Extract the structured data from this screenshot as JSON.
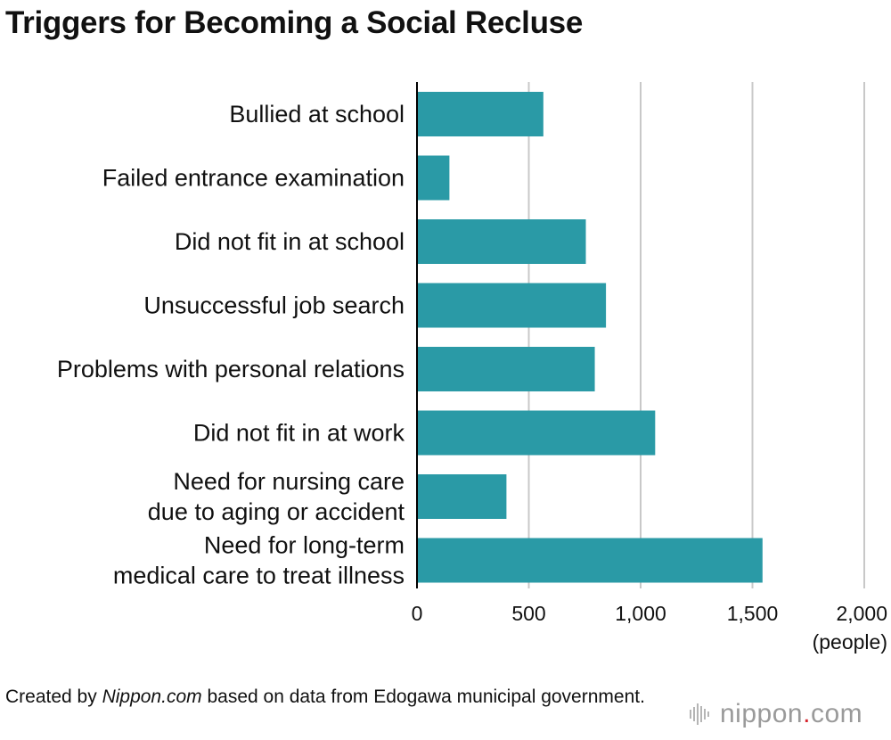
{
  "title": "Triggers for Becoming a Social Recluse",
  "credit": {
    "prefix": "Created by ",
    "source_name": "Nippon.com",
    "suffix": " based on data from Edogawa municipal government."
  },
  "logo": {
    "name": "nippon",
    "dot": ".",
    "tld": "com",
    "mark_icon": "sound-wave-icon"
  },
  "colors": {
    "bar": "#2a9aa6",
    "grid": "#c8c8c8",
    "axis": "#000000",
    "logo_accent": "#d6262e"
  },
  "chart_data": {
    "type": "bar",
    "orientation": "horizontal",
    "title": "Triggers for Becoming a Social Recluse",
    "categories": [
      [
        "Bullied at school"
      ],
      [
        "Failed entrance examination"
      ],
      [
        "Did not fit in at school"
      ],
      [
        "Unsuccessful job search"
      ],
      [
        "Problems with personal relations"
      ],
      [
        "Did not fit in at work"
      ],
      [
        "Need for nursing care",
        "due to aging or accident"
      ],
      [
        "Need for long-term",
        "medical care to treat illness"
      ]
    ],
    "values": [
      565,
      145,
      755,
      845,
      795,
      1065,
      400,
      1545
    ],
    "xlim": [
      0,
      2000
    ],
    "xticks": [
      0,
      500,
      1000,
      1500,
      2000
    ],
    "xtick_labels": [
      "0",
      "500",
      "1,000",
      "1,500",
      "2,000"
    ],
    "xlabel": "(people)",
    "ylabel": "",
    "grid": "vertical",
    "legend": "none"
  }
}
